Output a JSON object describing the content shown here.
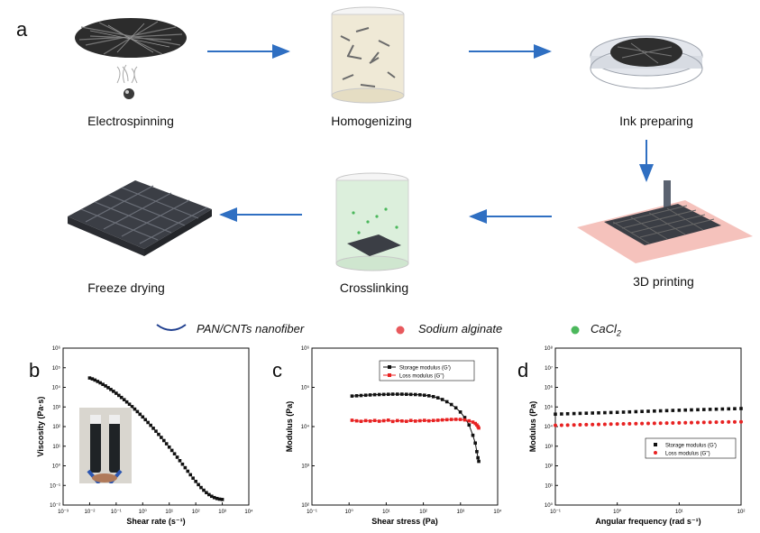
{
  "panel_labels": {
    "a": "a",
    "b": "b",
    "c": "c",
    "d": "d"
  },
  "process_steps": {
    "electrospinning": "Electrospinning",
    "homogenizing": "Homogenizing",
    "ink_preparing": "Ink preparing",
    "printing": "3D printing",
    "crosslinking": "Crosslinking",
    "freeze_drying": "Freeze drying"
  },
  "legend": {
    "pan": "PAN/CNTs nanofiber",
    "alginate": "Sodium alginate",
    "cacl2_base": "CaCl",
    "cacl2_sub": "2"
  },
  "colors": {
    "arrow": "#2f6fc2",
    "pan_line": "#1f3f8f",
    "alginate": "#e8595d",
    "cacl2": "#4cb85c",
    "storage": "#111111",
    "loss": "#e82222",
    "dish_tint": "#e8e2cc",
    "crosslink_tint": "#d9ecd9",
    "print_bed": "#f3b7b0",
    "scaffold": "#3b3e45"
  },
  "chart_data": [
    {
      "type": "scatter",
      "panel": "b",
      "title": "",
      "xlabel": "Shear rate (s⁻¹)",
      "ylabel": "Viscosity (Pa·s)",
      "xscale": "log",
      "yscale": "log",
      "xlim": [
        0.001,
        10000
      ],
      "ylim": [
        0.01,
        1000000
      ],
      "x_ticks": [
        "10⁻³",
        "10⁻²",
        "10⁻¹",
        "10⁰",
        "10¹",
        "10²",
        "10³",
        "10⁴"
      ],
      "y_ticks": [
        "10⁻²",
        "10⁻¹",
        "10⁰",
        "10¹",
        "10²",
        "10³",
        "10⁴",
        "10⁵",
        "10⁶"
      ],
      "grid": false,
      "series": [
        {
          "marker": "square",
          "x": [
            0.01,
            0.0126,
            0.0158,
            0.02,
            0.0251,
            0.0316,
            0.0398,
            0.05,
            0.063,
            0.079,
            0.1,
            0.126,
            0.158,
            0.2,
            0.251,
            0.316,
            0.398,
            0.5,
            0.63,
            0.79,
            1,
            1.26,
            1.58,
            2,
            2.51,
            3.16,
            3.98,
            5,
            6.3,
            7.9,
            10,
            12.6,
            15.8,
            20,
            25.1,
            31.6,
            39.8,
            50,
            63,
            79,
            100,
            126,
            158,
            200,
            251,
            316,
            398,
            500,
            630,
            790,
            1000
          ],
          "y": [
            30000,
            27000,
            23500,
            20000,
            17000,
            14200,
            11800,
            9600,
            7800,
            6300,
            5000,
            3900,
            3050,
            2350,
            1800,
            1380,
            1040,
            780,
            580,
            425,
            310,
            225,
            162,
            116,
            82,
            58,
            40,
            28,
            19.4,
            13.3,
            9,
            6.1,
            4.1,
            2.75,
            1.83,
            1.21,
            0.8,
            0.53,
            0.35,
            0.235,
            0.16,
            0.11,
            0.078,
            0.057,
            0.043,
            0.034,
            0.028,
            0.024,
            0.0215,
            0.02,
            0.0192
          ]
        }
      ]
    },
    {
      "type": "line",
      "panel": "c",
      "title": "",
      "xlabel": "Shear stress (Pa)",
      "ylabel": "Modulus (Pa)",
      "xscale": "log",
      "yscale": "log",
      "xlim": [
        0.1,
        10000
      ],
      "ylim": [
        100,
        1000000
      ],
      "x_ticks": [
        "10⁻¹",
        "10⁰",
        "10¹",
        "10²",
        "10³",
        "10⁴"
      ],
      "y_ticks": [
        "10²",
        "10³",
        "10⁴",
        "10⁵",
        "10⁶"
      ],
      "legend_position": "top-right",
      "grid": false,
      "series": [
        {
          "name": "Storage modulus (G')",
          "marker": "square",
          "color": "#111111",
          "x": [
            1.2,
            1.6,
            2.1,
            2.8,
            3.7,
            4.9,
            6.5,
            8.6,
            11.4,
            15,
            20,
            26.5,
            35,
            46,
            61,
            81,
            107,
            141,
            186,
            246,
            325,
            430,
            568,
            750,
            990,
            1300,
            1700,
            2150,
            2500,
            2750,
            2950,
            3100
          ],
          "y": [
            60000,
            61000,
            62000,
            63000,
            64000,
            65000,
            65500,
            66000,
            66500,
            67000,
            67000,
            67000,
            66500,
            66000,
            65500,
            64500,
            63000,
            61000,
            58000,
            54000,
            49000,
            43000,
            36500,
            30000,
            23500,
            17000,
            11000,
            6000,
            3800,
            2300,
            1600,
            1300
          ]
        },
        {
          "name": "Loss modulus (G'')",
          "marker": "square",
          "color": "#e82222",
          "x": [
            1.2,
            1.6,
            2.1,
            2.8,
            3.7,
            4.9,
            6.5,
            8.6,
            11.4,
            15,
            20,
            26.5,
            35,
            46,
            61,
            81,
            107,
            141,
            186,
            246,
            325,
            430,
            568,
            750,
            990,
            1300,
            1700,
            2150,
            2500,
            2750,
            2950,
            3100
          ],
          "y": [
            14500,
            14000,
            13600,
            14200,
            13800,
            14300,
            13700,
            14100,
            14600,
            13500,
            14200,
            13900,
            13600,
            14300,
            13800,
            14100,
            14400,
            14000,
            14300,
            14500,
            14800,
            15000,
            15200,
            15300,
            15200,
            14800,
            14000,
            13000,
            12000,
            11000,
            10000,
            9200
          ]
        }
      ]
    },
    {
      "type": "scatter",
      "panel": "d",
      "title": "",
      "xlabel": "Angular frequency (rad s⁻¹)",
      "ylabel": "Modulus (Pa)",
      "xscale": "log",
      "yscale": "log",
      "xlim": [
        0.1,
        100
      ],
      "ylim": [
        1,
        100000000
      ],
      "x_ticks": [
        "10⁻¹",
        "10⁰",
        "10¹",
        "10²"
      ],
      "y_ticks": [
        "10⁰",
        "10¹",
        "10²",
        "10³",
        "10⁴",
        "10⁵",
        "10⁶",
        "10⁷",
        "10⁸"
      ],
      "legend_position": "bottom-right",
      "grid": false,
      "series": [
        {
          "name": "Storage modulus (G')",
          "marker": "square",
          "color": "#111111",
          "x": [
            0.1,
            0.126,
            0.158,
            0.2,
            0.251,
            0.316,
            0.398,
            0.5,
            0.63,
            0.79,
            1,
            1.26,
            1.58,
            2,
            2.51,
            3.16,
            3.98,
            5,
            6.3,
            7.9,
            10,
            12.6,
            15.8,
            20,
            25.1,
            31.6,
            39.8,
            50,
            63,
            79,
            100
          ],
          "y": [
            43000,
            44000,
            45000,
            46000,
            47000,
            48000,
            49000,
            50000,
            51000,
            52000,
            53000,
            54500,
            56000,
            57500,
            59000,
            60500,
            62000,
            63500,
            65000,
            66500,
            68000,
            69500,
            71000,
            72500,
            74000,
            75500,
            77000,
            78500,
            80000,
            81500,
            83000
          ]
        },
        {
          "name": "Loss modulus (G'')",
          "marker": "circle",
          "color": "#e82222",
          "x": [
            0.1,
            0.126,
            0.158,
            0.2,
            0.251,
            0.316,
            0.398,
            0.5,
            0.63,
            0.79,
            1,
            1.26,
            1.58,
            2,
            2.51,
            3.16,
            3.98,
            5,
            6.3,
            7.9,
            10,
            12.6,
            15.8,
            20,
            25.1,
            31.6,
            39.8,
            50,
            63,
            79,
            100
          ],
          "y": [
            11500,
            11700,
            11900,
            12100,
            12300,
            12500,
            12700,
            12900,
            13100,
            13300,
            13500,
            13700,
            13900,
            14100,
            14300,
            14500,
            14700,
            14900,
            15100,
            15300,
            15500,
            15700,
            15900,
            16100,
            16300,
            16500,
            16700,
            16900,
            17100,
            17300,
            17500
          ]
        }
      ]
    }
  ]
}
